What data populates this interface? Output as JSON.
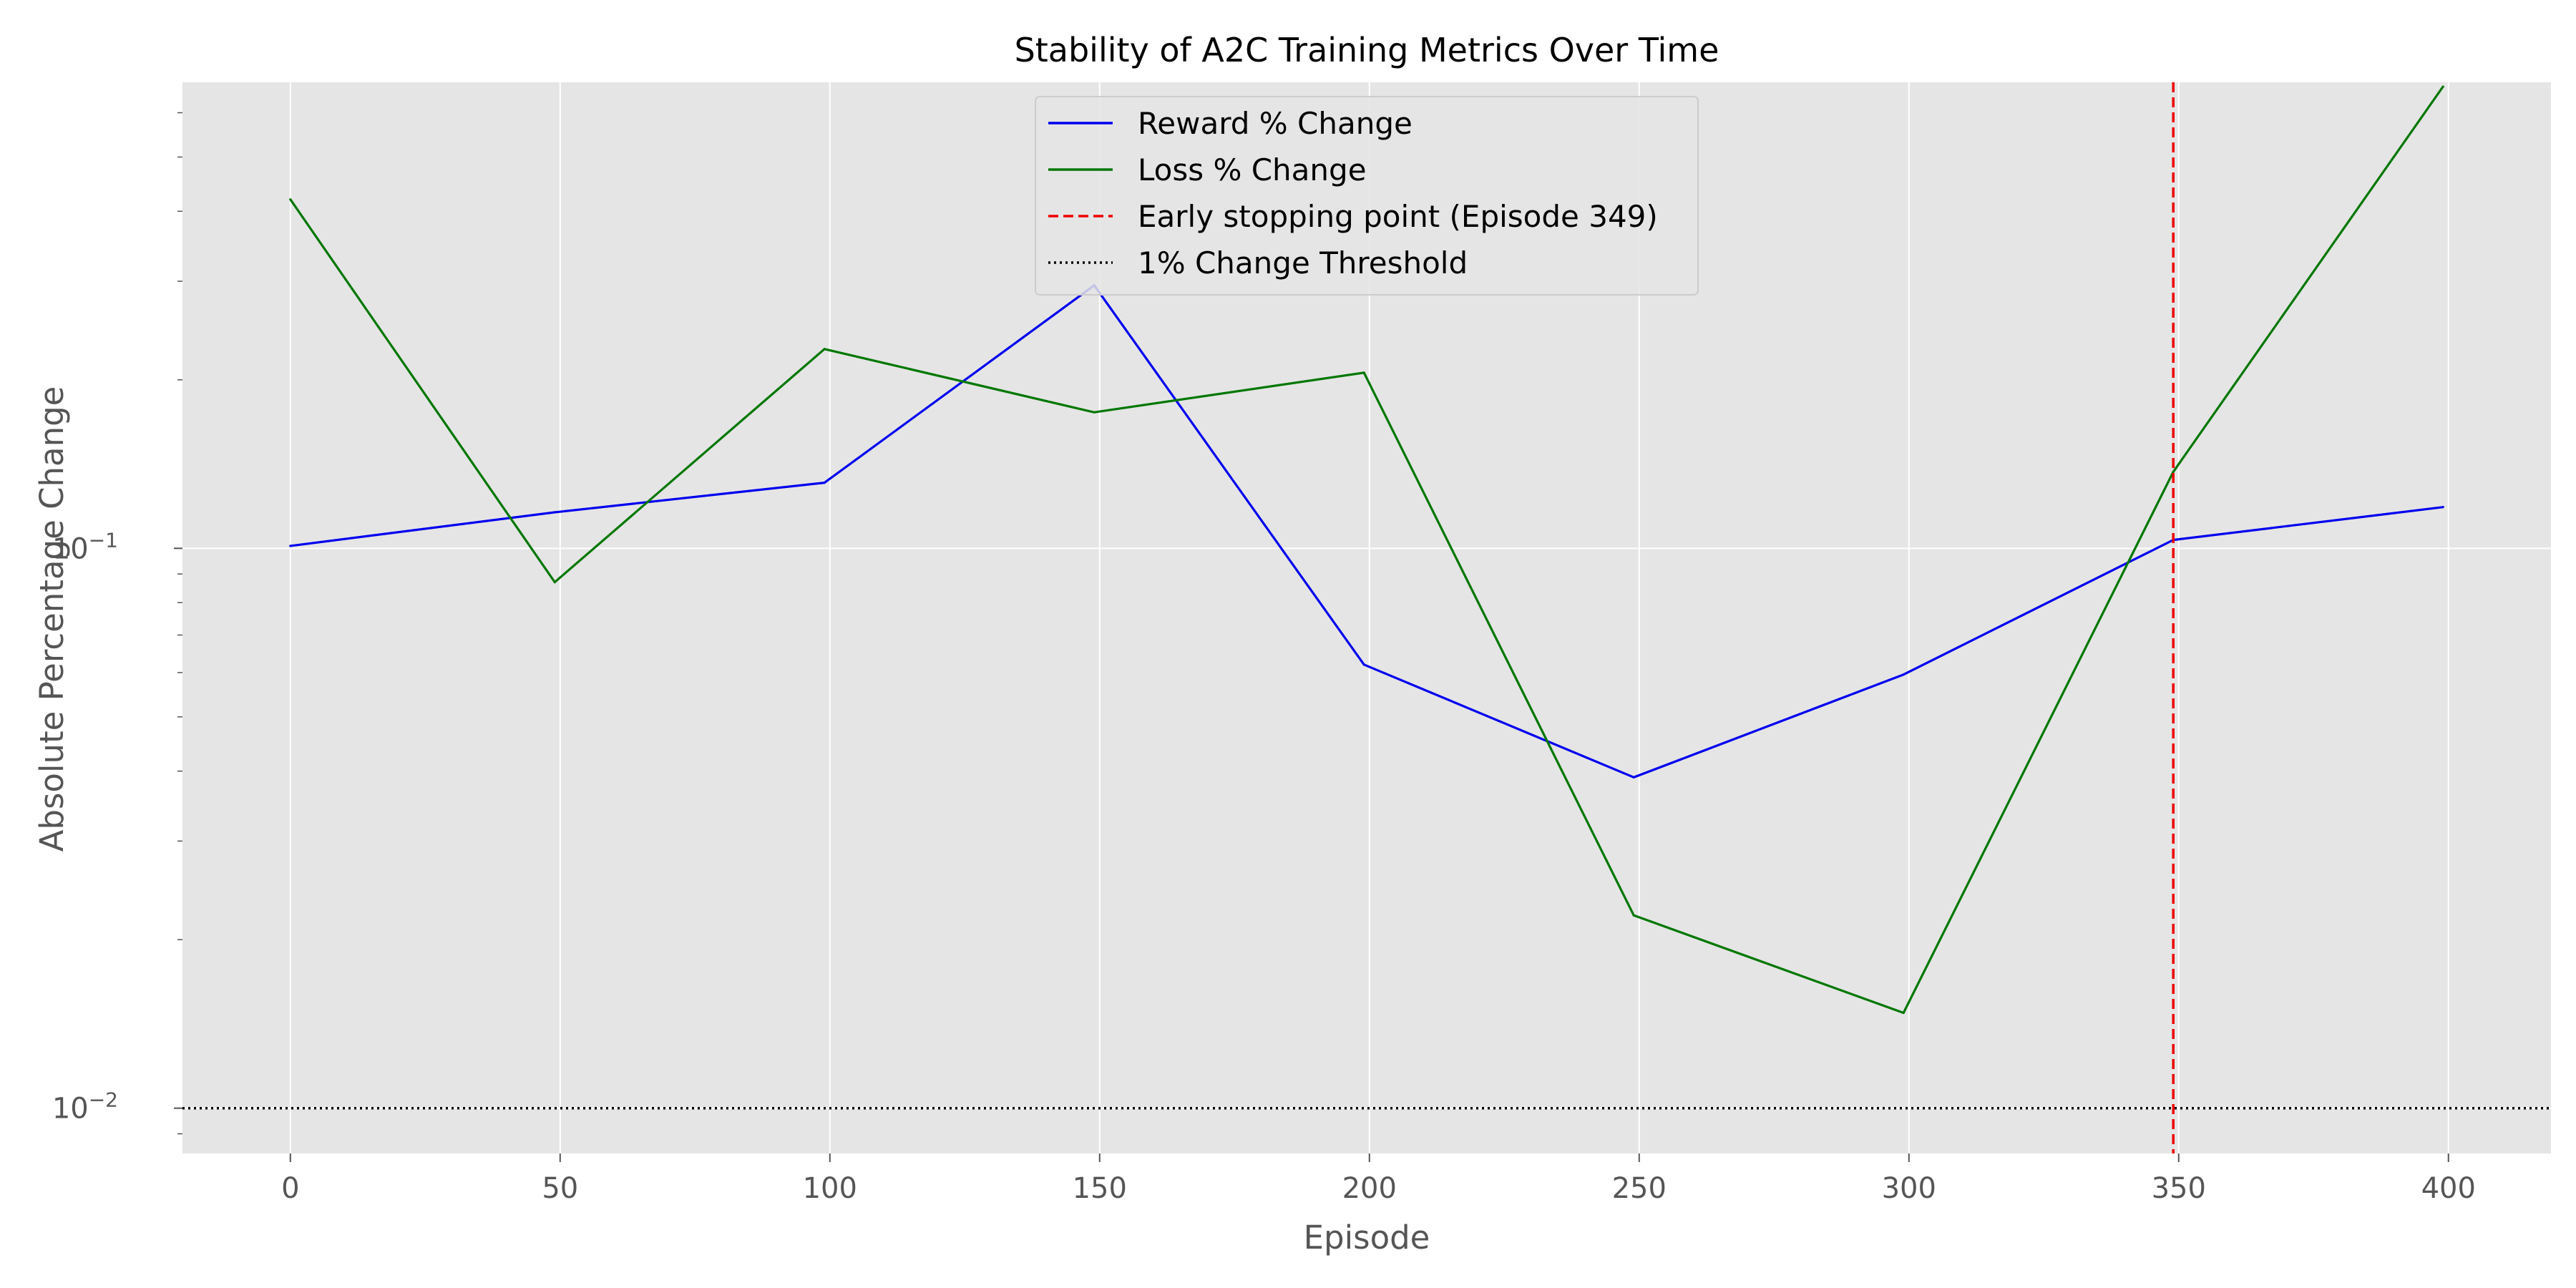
{
  "chart_data": {
    "type": "line",
    "title": "Stability of A2C Training Metrics Over Time",
    "xlabel": "Episode",
    "ylabel": "Absolute Percentage Change",
    "yscale": "log",
    "xlim": [
      -20,
      419
    ],
    "ylim": [
      0.0083,
      0.68
    ],
    "x_ticks": [
      0,
      50,
      100,
      150,
      200,
      250,
      300,
      350,
      400
    ],
    "x_tick_labels": [
      "0",
      "50",
      "100",
      "150",
      "200",
      "250",
      "300",
      "350",
      "400"
    ],
    "y_ticks": [
      {
        "value": 0.1,
        "base": "10",
        "exp": "−1"
      },
      {
        "value": 0.01,
        "base": "10",
        "exp": "−2"
      }
    ],
    "grid": true,
    "legend_position": "top-center",
    "series": [
      {
        "name": "Reward % Change",
        "color": "#0000ee",
        "style": "solid",
        "x": [
          0,
          49,
          99,
          149,
          199,
          249,
          299,
          349,
          399
        ],
        "values": [
          0.101,
          0.116,
          0.131,
          0.295,
          0.062,
          0.039,
          0.0595,
          0.1035,
          0.1185
        ]
      },
      {
        "name": "Loss % Change",
        "color": "#007700",
        "style": "solid",
        "x": [
          0,
          49,
          99,
          149,
          199,
          249,
          299,
          349,
          399
        ],
        "values": [
          0.42,
          0.087,
          0.227,
          0.175,
          0.206,
          0.0221,
          0.0148,
          0.137,
          0.668
        ]
      }
    ],
    "reference_lines": [
      {
        "name": "Early stopping point (Episode 349)",
        "orientation": "vertical",
        "value": 349,
        "color": "#ee0000",
        "style": "dashed"
      },
      {
        "name": "1% Change Threshold",
        "orientation": "horizontal",
        "value": 0.01,
        "color": "#000000",
        "style": "dotted"
      }
    ]
  }
}
